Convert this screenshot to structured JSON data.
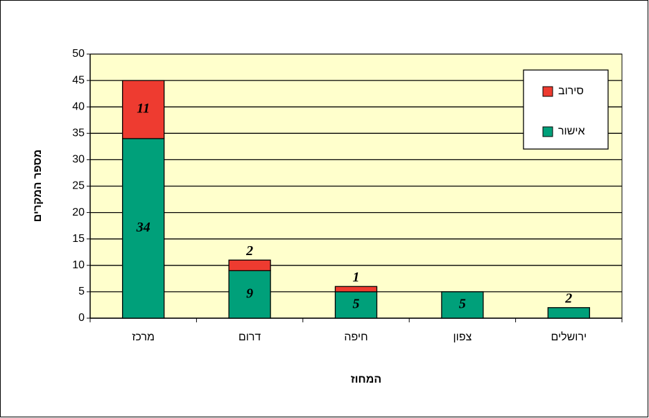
{
  "chart_data": {
    "type": "stacked_bar",
    "categories": [
      "מרכז",
      "דרום",
      "חיפה",
      "צפון",
      "ירושלים"
    ],
    "series": [
      {
        "name": "אישור",
        "color": "#00a07a",
        "values": [
          34,
          9,
          5,
          5,
          2
        ]
      },
      {
        "name": "סירוב",
        "color": "#ee3b30",
        "values": [
          11,
          2,
          1,
          null,
          null
        ]
      }
    ],
    "xlabel": "המחוז",
    "ylabel": "מספר המקרים",
    "ylim": [
      0,
      50
    ],
    "yticks": [
      0,
      5,
      10,
      15,
      20,
      25,
      30,
      35,
      40,
      45,
      50
    ],
    "grid": true,
    "legend": "upper right",
    "background": "#ffffcc"
  }
}
